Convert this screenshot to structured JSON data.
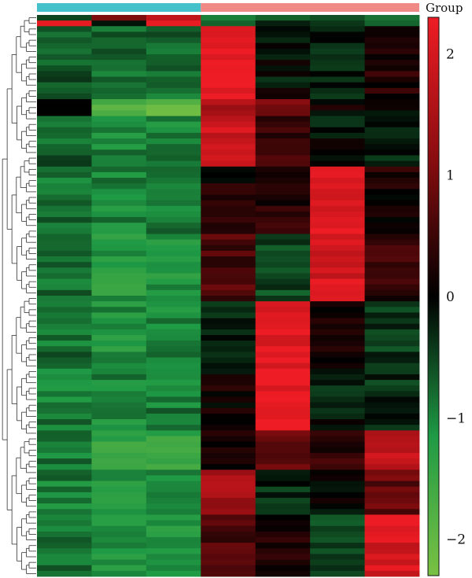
{
  "chart_data": {
    "type": "heatmap",
    "title": "",
    "xlabel": "",
    "ylabel": "",
    "legend": {
      "title": "Group",
      "placement": "right"
    },
    "groups": [
      {
        "color": "#45c1cc",
        "columns": [
          0,
          1,
          2
        ]
      },
      {
        "color": "#f08a86",
        "columns": [
          3,
          4,
          5,
          6
        ]
      }
    ],
    "color_scale": {
      "min": -2.3,
      "max": 2.3,
      "low_color": "#7ac143",
      "mid_low_color": "#1f9a45",
      "mid_color": "#000000",
      "mid_high_color": "#8b0d10",
      "high_color": "#ee1c24",
      "ticks": [
        -2,
        -1,
        0,
        1,
        2
      ],
      "tick_labels": [
        "−2",
        "−1",
        "0",
        "1",
        "2"
      ]
    },
    "n_columns": 7,
    "n_rows": 100,
    "rows_by_segment": [
      {
        "rows": [
          0,
          0
        ],
        "column_values": [
          -0.5,
          1.0,
          2.0,
          -0.8,
          -0.7,
          -0.6,
          -0.6
        ]
      },
      {
        "rows": [
          1,
          1
        ],
        "column_values": [
          2.0,
          -0.2,
          2.3,
          -0.6,
          -0.4,
          -0.5,
          -0.5
        ]
      },
      {
        "rows": [
          2,
          14
        ],
        "column_values": [
          -0.6,
          -0.8,
          -0.8,
          2.3,
          -0.1,
          -0.3,
          0.3
        ]
      },
      {
        "rows": [
          15,
          17
        ],
        "column_values": [
          0.2,
          -1.7,
          -1.9,
          1.6,
          0.9,
          0.1,
          -0.1
        ]
      },
      {
        "rows": [
          18,
          26
        ],
        "column_values": [
          -0.7,
          -1.0,
          -1.0,
          1.9,
          0.5,
          -0.1,
          -0.2
        ]
      },
      {
        "rows": [
          27,
          38
        ],
        "column_values": [
          -0.8,
          -1.0,
          -0.9,
          0.2,
          0.3,
          2.2,
          0.2
        ]
      },
      {
        "rows": [
          39,
          50
        ],
        "column_values": [
          -0.8,
          -1.2,
          -1.1,
          0.6,
          -0.5,
          2.0,
          0.4
        ]
      },
      {
        "rows": [
          51,
          62
        ],
        "column_values": [
          -0.8,
          -1.1,
          -1.0,
          -0.2,
          2.2,
          0.2,
          -0.4
        ]
      },
      {
        "rows": [
          63,
          73
        ],
        "column_values": [
          -0.9,
          -1.0,
          -0.9,
          0.1,
          2.3,
          -0.2,
          -0.3
        ]
      },
      {
        "rows": [
          74,
          80
        ],
        "column_values": [
          -0.9,
          -1.5,
          -1.4,
          0.2,
          0.9,
          0.4,
          1.8
        ]
      },
      {
        "rows": [
          81,
          88
        ],
        "column_values": [
          -0.9,
          -1.1,
          -1.1,
          1.4,
          -0.3,
          0.0,
          0.8
        ]
      },
      {
        "rows": [
          89,
          99
        ],
        "column_values": [
          -0.8,
          -1.2,
          -1.1,
          0.6,
          0.3,
          -0.5,
          2.0
        ]
      }
    ]
  }
}
